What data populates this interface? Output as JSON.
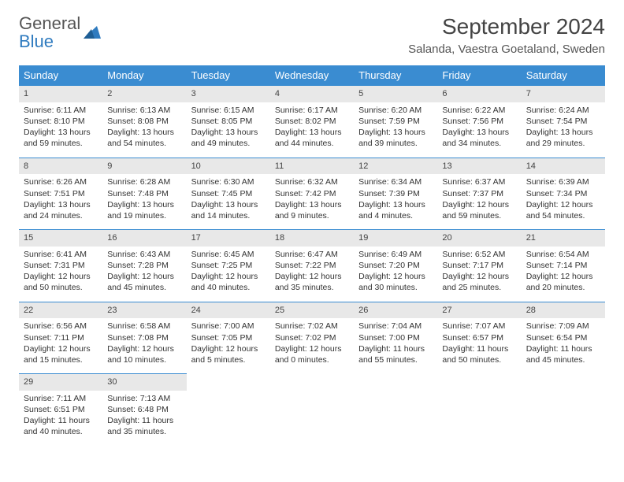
{
  "brand": {
    "line1": "General",
    "line2": "Blue"
  },
  "title": "September 2024",
  "location": "Salanda, Vaestra Goetaland, Sweden",
  "weekdays": [
    "Sunday",
    "Monday",
    "Tuesday",
    "Wednesday",
    "Thursday",
    "Friday",
    "Saturday"
  ],
  "colors": {
    "header_bg": "#3a8cd1",
    "header_text": "#ffffff",
    "daynum_bg": "#e8e8e8",
    "border": "#3a8cd1",
    "brand_blue": "#2f7bbf"
  },
  "weeks": [
    [
      {
        "n": "1",
        "sunrise": "6:11 AM",
        "sunset": "8:10 PM",
        "daylight": "13 hours and 59 minutes."
      },
      {
        "n": "2",
        "sunrise": "6:13 AM",
        "sunset": "8:08 PM",
        "daylight": "13 hours and 54 minutes."
      },
      {
        "n": "3",
        "sunrise": "6:15 AM",
        "sunset": "8:05 PM",
        "daylight": "13 hours and 49 minutes."
      },
      {
        "n": "4",
        "sunrise": "6:17 AM",
        "sunset": "8:02 PM",
        "daylight": "13 hours and 44 minutes."
      },
      {
        "n": "5",
        "sunrise": "6:20 AM",
        "sunset": "7:59 PM",
        "daylight": "13 hours and 39 minutes."
      },
      {
        "n": "6",
        "sunrise": "6:22 AM",
        "sunset": "7:56 PM",
        "daylight": "13 hours and 34 minutes."
      },
      {
        "n": "7",
        "sunrise": "6:24 AM",
        "sunset": "7:54 PM",
        "daylight": "13 hours and 29 minutes."
      }
    ],
    [
      {
        "n": "8",
        "sunrise": "6:26 AM",
        "sunset": "7:51 PM",
        "daylight": "13 hours and 24 minutes."
      },
      {
        "n": "9",
        "sunrise": "6:28 AM",
        "sunset": "7:48 PM",
        "daylight": "13 hours and 19 minutes."
      },
      {
        "n": "10",
        "sunrise": "6:30 AM",
        "sunset": "7:45 PM",
        "daylight": "13 hours and 14 minutes."
      },
      {
        "n": "11",
        "sunrise": "6:32 AM",
        "sunset": "7:42 PM",
        "daylight": "13 hours and 9 minutes."
      },
      {
        "n": "12",
        "sunrise": "6:34 AM",
        "sunset": "7:39 PM",
        "daylight": "13 hours and 4 minutes."
      },
      {
        "n": "13",
        "sunrise": "6:37 AM",
        "sunset": "7:37 PM",
        "daylight": "12 hours and 59 minutes."
      },
      {
        "n": "14",
        "sunrise": "6:39 AM",
        "sunset": "7:34 PM",
        "daylight": "12 hours and 54 minutes."
      }
    ],
    [
      {
        "n": "15",
        "sunrise": "6:41 AM",
        "sunset": "7:31 PM",
        "daylight": "12 hours and 50 minutes."
      },
      {
        "n": "16",
        "sunrise": "6:43 AM",
        "sunset": "7:28 PM",
        "daylight": "12 hours and 45 minutes."
      },
      {
        "n": "17",
        "sunrise": "6:45 AM",
        "sunset": "7:25 PM",
        "daylight": "12 hours and 40 minutes."
      },
      {
        "n": "18",
        "sunrise": "6:47 AM",
        "sunset": "7:22 PM",
        "daylight": "12 hours and 35 minutes."
      },
      {
        "n": "19",
        "sunrise": "6:49 AM",
        "sunset": "7:20 PM",
        "daylight": "12 hours and 30 minutes."
      },
      {
        "n": "20",
        "sunrise": "6:52 AM",
        "sunset": "7:17 PM",
        "daylight": "12 hours and 25 minutes."
      },
      {
        "n": "21",
        "sunrise": "6:54 AM",
        "sunset": "7:14 PM",
        "daylight": "12 hours and 20 minutes."
      }
    ],
    [
      {
        "n": "22",
        "sunrise": "6:56 AM",
        "sunset": "7:11 PM",
        "daylight": "12 hours and 15 minutes."
      },
      {
        "n": "23",
        "sunrise": "6:58 AM",
        "sunset": "7:08 PM",
        "daylight": "12 hours and 10 minutes."
      },
      {
        "n": "24",
        "sunrise": "7:00 AM",
        "sunset": "7:05 PM",
        "daylight": "12 hours and 5 minutes."
      },
      {
        "n": "25",
        "sunrise": "7:02 AM",
        "sunset": "7:02 PM",
        "daylight": "12 hours and 0 minutes."
      },
      {
        "n": "26",
        "sunrise": "7:04 AM",
        "sunset": "7:00 PM",
        "daylight": "11 hours and 55 minutes."
      },
      {
        "n": "27",
        "sunrise": "7:07 AM",
        "sunset": "6:57 PM",
        "daylight": "11 hours and 50 minutes."
      },
      {
        "n": "28",
        "sunrise": "7:09 AM",
        "sunset": "6:54 PM",
        "daylight": "11 hours and 45 minutes."
      }
    ],
    [
      {
        "n": "29",
        "sunrise": "7:11 AM",
        "sunset": "6:51 PM",
        "daylight": "11 hours and 40 minutes."
      },
      {
        "n": "30",
        "sunrise": "7:13 AM",
        "sunset": "6:48 PM",
        "daylight": "11 hours and 35 minutes."
      },
      null,
      null,
      null,
      null,
      null
    ]
  ],
  "labels": {
    "sunrise": "Sunrise:",
    "sunset": "Sunset:",
    "daylight": "Daylight:"
  }
}
